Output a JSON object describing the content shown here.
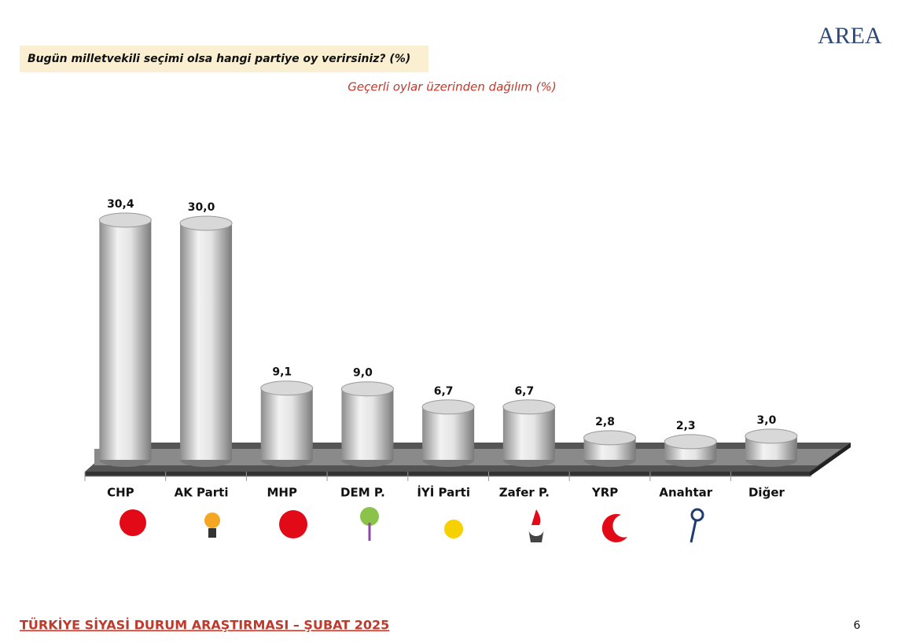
{
  "logo": "AREA",
  "footer": "TÜRKİYE SİYASİ DURUM ARAŞTIRMASI – ŞUBAT 2025",
  "page_number": "6",
  "chart_data": {
    "type": "cylinder",
    "title": "Bugün milletvekili seçimi olsa hangi partiye oy verirsiniz? (%)",
    "subtitle": "Geçerli oylar üzerinden dağılım (%)",
    "categories": [
      "CHP",
      "AK Parti",
      "MHP",
      "DEM P.",
      "İYİ Parti",
      "Zafer P.",
      "YRP",
      "Anahtar",
      "Diğer"
    ],
    "values": [
      30.4,
      30.0,
      9.1,
      9.0,
      6.7,
      6.7,
      2.8,
      2.3,
      3.0
    ],
    "value_labels": [
      "30,4",
      "30,0",
      "9,1",
      "9,0",
      "6,7",
      "6,7",
      "2,8",
      "2,3",
      "3,0"
    ],
    "color": "#d8d8d8"
  }
}
